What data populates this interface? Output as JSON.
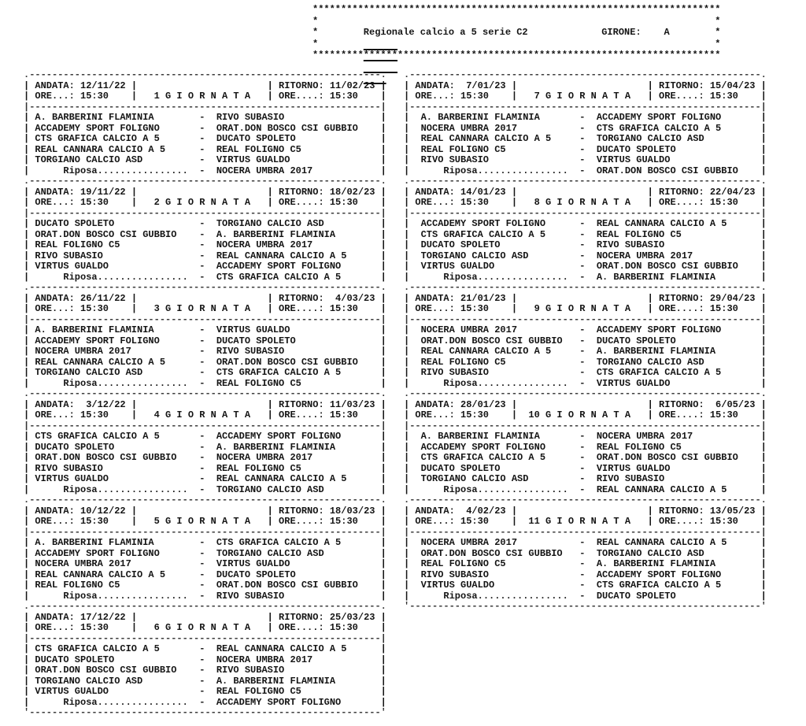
{
  "header": {
    "title": "Regionale calcio a 5 serie C2",
    "girone_label": "GIRONE:",
    "girone_value": "A"
  },
  "labels": {
    "andata": "ANDATA:",
    "ritorno": "RITORNO:",
    "ore_andata": "ORE...:",
    "ore_ritorno": "ORE....:",
    "giornata": "G I O R N A T A",
    "riposa": "Riposa................",
    "vs": "-"
  },
  "giornate": [
    {
      "numero": "1",
      "andata": "12/11/22",
      "ritorno": "11/02/23",
      "ore_andata": "15:30",
      "ore_ritorno": "15:30",
      "partite": [
        {
          "casa": "A. BARBERINI FLAMINIA",
          "ospite": "RIVO SUBASIO"
        },
        {
          "casa": "ACCADEMY SPORT FOLIGNO",
          "ospite": "ORAT.DON BOSCO CSI GUBBIO"
        },
        {
          "casa": "CTS GRAFICA CALCIO A 5",
          "ospite": "DUCATO SPOLETO"
        },
        {
          "casa": "REAL CANNARA CALCIO A 5",
          "ospite": "REAL FOLIGNO C5"
        },
        {
          "casa": "TORGIANO CALCIO ASD",
          "ospite": "VIRTUS GUALDO"
        }
      ],
      "riposa": "NOCERA UMBRA 2017"
    },
    {
      "numero": "2",
      "andata": "19/11/22",
      "ritorno": "18/02/23",
      "ore_andata": "15:30",
      "ore_ritorno": "15:30",
      "partite": [
        {
          "casa": "DUCATO SPOLETO",
          "ospite": "TORGIANO CALCIO ASD"
        },
        {
          "casa": "ORAT.DON BOSCO CSI GUBBIO",
          "ospite": "A. BARBERINI FLAMINIA"
        },
        {
          "casa": "REAL FOLIGNO C5",
          "ospite": "NOCERA UMBRA 2017"
        },
        {
          "casa": "RIVO SUBASIO",
          "ospite": "REAL CANNARA CALCIO A 5"
        },
        {
          "casa": "VIRTUS GUALDO",
          "ospite": "ACCADEMY SPORT FOLIGNO"
        }
      ],
      "riposa": "CTS GRAFICA CALCIO A 5"
    },
    {
      "numero": "3",
      "andata": "26/11/22",
      "ritorno": "4/03/23",
      "ore_andata": "15:30",
      "ore_ritorno": "15:30",
      "partite": [
        {
          "casa": "A. BARBERINI FLAMINIA",
          "ospite": "VIRTUS GUALDO"
        },
        {
          "casa": "ACCADEMY SPORT FOLIGNO",
          "ospite": "DUCATO SPOLETO"
        },
        {
          "casa": "NOCERA UMBRA 2017",
          "ospite": "RIVO SUBASIO"
        },
        {
          "casa": "REAL CANNARA CALCIO A 5",
          "ospite": "ORAT.DON BOSCO CSI GUBBIO"
        },
        {
          "casa": "TORGIANO CALCIO ASD",
          "ospite": "CTS GRAFICA CALCIO A 5"
        }
      ],
      "riposa": "REAL FOLIGNO C5"
    },
    {
      "numero": "4",
      "andata": "3/12/22",
      "ritorno": "11/03/23",
      "ore_andata": "15:30",
      "ore_ritorno": "15:30",
      "partite": [
        {
          "casa": "CTS GRAFICA CALCIO A 5",
          "ospite": "ACCADEMY SPORT FOLIGNO"
        },
        {
          "casa": "DUCATO SPOLETO",
          "ospite": "A. BARBERINI FLAMINIA"
        },
        {
          "casa": "ORAT.DON BOSCO CSI GUBBIO",
          "ospite": "NOCERA UMBRA 2017"
        },
        {
          "casa": "RIVO SUBASIO",
          "ospite": "REAL FOLIGNO C5"
        },
        {
          "casa": "VIRTUS GUALDO",
          "ospite": "REAL CANNARA CALCIO A 5"
        }
      ],
      "riposa": "TORGIANO CALCIO ASD"
    },
    {
      "numero": "5",
      "andata": "10/12/22",
      "ritorno": "18/03/23",
      "ore_andata": "15:30",
      "ore_ritorno": "15:30",
      "partite": [
        {
          "casa": "A. BARBERINI FLAMINIA",
          "ospite": "CTS GRAFICA CALCIO A 5"
        },
        {
          "casa": "ACCADEMY SPORT FOLIGNO",
          "ospite": "TORGIANO CALCIO ASD"
        },
        {
          "casa": "NOCERA UMBRA 2017",
          "ospite": "VIRTUS GUALDO"
        },
        {
          "casa": "REAL CANNARA CALCIO A 5",
          "ospite": "DUCATO SPOLETO"
        },
        {
          "casa": "REAL FOLIGNO C5",
          "ospite": "ORAT.DON BOSCO CSI GUBBIO"
        }
      ],
      "riposa": "RIVO SUBASIO"
    },
    {
      "numero": "6",
      "andata": "17/12/22",
      "ritorno": "25/03/23",
      "ore_andata": "15:30",
      "ore_ritorno": "15:30",
      "partite": [
        {
          "casa": "CTS GRAFICA CALCIO A 5",
          "ospite": "REAL CANNARA CALCIO A 5"
        },
        {
          "casa": "DUCATO SPOLETO",
          "ospite": "NOCERA UMBRA 2017"
        },
        {
          "casa": "ORAT.DON BOSCO CSI GUBBIO",
          "ospite": "RIVO SUBASIO"
        },
        {
          "casa": "TORGIANO CALCIO ASD",
          "ospite": "A. BARBERINI FLAMINIA"
        },
        {
          "casa": "VIRTUS GUALDO",
          "ospite": "REAL FOLIGNO C5"
        }
      ],
      "riposa": "ACCADEMY SPORT FOLIGNO"
    },
    {
      "numero": "7",
      "andata": "7/01/23",
      "ritorno": "15/04/23",
      "ore_andata": "15:30",
      "ore_ritorno": "15:30",
      "partite": [
        {
          "casa": "A. BARBERINI FLAMINIA",
          "ospite": "ACCADEMY SPORT FOLIGNO"
        },
        {
          "casa": "NOCERA UMBRA 2017",
          "ospite": "CTS GRAFICA CALCIO A 5"
        },
        {
          "casa": "REAL CANNARA CALCIO A 5",
          "ospite": "TORGIANO CALCIO ASD"
        },
        {
          "casa": "REAL FOLIGNO C5",
          "ospite": "DUCATO SPOLETO"
        },
        {
          "casa": "RIVO SUBASIO",
          "ospite": "VIRTUS GUALDO"
        }
      ],
      "riposa": "ORAT.DON BOSCO CSI GUBBIO"
    },
    {
      "numero": "8",
      "andata": "14/01/23",
      "ritorno": "22/04/23",
      "ore_andata": "15:30",
      "ore_ritorno": "15:30",
      "partite": [
        {
          "casa": "ACCADEMY SPORT FOLIGNO",
          "ospite": "REAL CANNARA CALCIO A 5"
        },
        {
          "casa": "CTS GRAFICA CALCIO A 5",
          "ospite": "REAL FOLIGNO C5"
        },
        {
          "casa": "DUCATO SPOLETO",
          "ospite": "RIVO SUBASIO"
        },
        {
          "casa": "TORGIANO CALCIO ASD",
          "ospite": "NOCERA UMBRA 2017"
        },
        {
          "casa": "VIRTUS GUALDO",
          "ospite": "ORAT.DON BOSCO CSI GUBBIO"
        }
      ],
      "riposa": "A. BARBERINI FLAMINIA"
    },
    {
      "numero": "9",
      "andata": "21/01/23",
      "ritorno": "29/04/23",
      "ore_andata": "15:30",
      "ore_ritorno": "15:30",
      "partite": [
        {
          "casa": "NOCERA UMBRA 2017",
          "ospite": "ACCADEMY SPORT FOLIGNO"
        },
        {
          "casa": "ORAT.DON BOSCO CSI GUBBIO",
          "ospite": "DUCATO SPOLETO"
        },
        {
          "casa": "REAL CANNARA CALCIO A 5",
          "ospite": "A. BARBERINI FLAMINIA"
        },
        {
          "casa": "REAL FOLIGNO C5",
          "ospite": "TORGIANO CALCIO ASD"
        },
        {
          "casa": "RIVO SUBASIO",
          "ospite": "CTS GRAFICA CALCIO A 5"
        }
      ],
      "riposa": "VIRTUS GUALDO"
    },
    {
      "numero": "10",
      "andata": "28/01/23",
      "ritorno": "6/05/23",
      "ore_andata": "15:30",
      "ore_ritorno": "15:30",
      "partite": [
        {
          "casa": "A. BARBERINI FLAMINIA",
          "ospite": "NOCERA UMBRA 2017"
        },
        {
          "casa": "ACCADEMY SPORT FOLIGNO",
          "ospite": "REAL FOLIGNO C5"
        },
        {
          "casa": "CTS GRAFICA CALCIO A 5",
          "ospite": "ORAT.DON BOSCO CSI GUBBIO"
        },
        {
          "casa": "DUCATO SPOLETO",
          "ospite": "VIRTUS GUALDO"
        },
        {
          "casa": "TORGIANO CALCIO ASD",
          "ospite": "RIVO SUBASIO"
        }
      ],
      "riposa": "REAL CANNARA CALCIO A 5"
    },
    {
      "numero": "11",
      "andata": "4/02/23",
      "ritorno": "13/05/23",
      "ore_andata": "15:30",
      "ore_ritorno": "15:30",
      "partite": [
        {
          "casa": "NOCERA UMBRA 2017",
          "ospite": "REAL CANNARA CALCIO A 5"
        },
        {
          "casa": "ORAT.DON BOSCO CSI GUBBIO",
          "ospite": "TORGIANO CALCIO ASD"
        },
        {
          "casa": "REAL FOLIGNO C5",
          "ospite": "A. BARBERINI FLAMINIA"
        },
        {
          "casa": "RIVO SUBASIO",
          "ospite": "ACCADEMY SPORT FOLIGNO"
        },
        {
          "casa": "VIRTUS GUALDO",
          "ospite": "CTS GRAFICA CALCIO A 5"
        }
      ],
      "riposa": "DUCATO SPOLETO"
    }
  ]
}
